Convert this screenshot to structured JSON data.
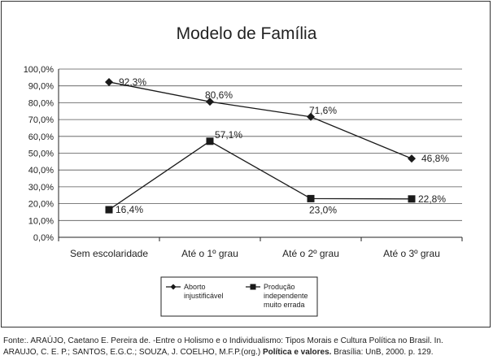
{
  "chart_data": {
    "type": "line",
    "title": "Modelo de Família",
    "xlabel": "",
    "ylabel": "",
    "ylim": [
      0,
      100
    ],
    "y_ticks": [
      "0,0%",
      "10,0%",
      "20,0%",
      "30,0%",
      "40,0%",
      "50,0%",
      "60,0%",
      "70,0%",
      "80,0%",
      "90,0%",
      "100,0%"
    ],
    "categories": [
      "Sem escolaridade",
      "Até o 1º grau",
      "Até o 2º grau",
      "Até o 3º grau"
    ],
    "grid": true,
    "legend_position": "bottom",
    "series": [
      {
        "name": "Aborto injustificável",
        "legend_lines": [
          "Aborto",
          "injustificável"
        ],
        "values": [
          92.3,
          80.6,
          71.6,
          46.8
        ],
        "labels": [
          "92,3%",
          "80,6%",
          "71,6%",
          "46,8%"
        ],
        "marker": "diamond"
      },
      {
        "name": "Produção independente muito errada",
        "legend_lines": [
          "Produção",
          "independente",
          "muito errada"
        ],
        "values": [
          16.4,
          57.1,
          23.0,
          22.8
        ],
        "labels": [
          "16,4%",
          "57,1%",
          "23,0%",
          "22,8%"
        ],
        "marker": "square"
      }
    ],
    "colors": {
      "line": "#1a1a1a",
      "grid": "#555555"
    }
  },
  "source": {
    "line1": "Fonte:. ARAÚJO, Caetano E. Pereira de. -Entre o Holismo e o Individualismo: Tipos Morais e Cultura Política no Brasil.  In.",
    "line2_a": "ARAUJO, C. E. P.; SANTOS, E.G.C.; SOUZA, J. COELHO, M.F.P.(org.) ",
    "line2_b": "Política e valores.",
    "line2_c": " Brasília: UnB, 2000. p.  129."
  }
}
